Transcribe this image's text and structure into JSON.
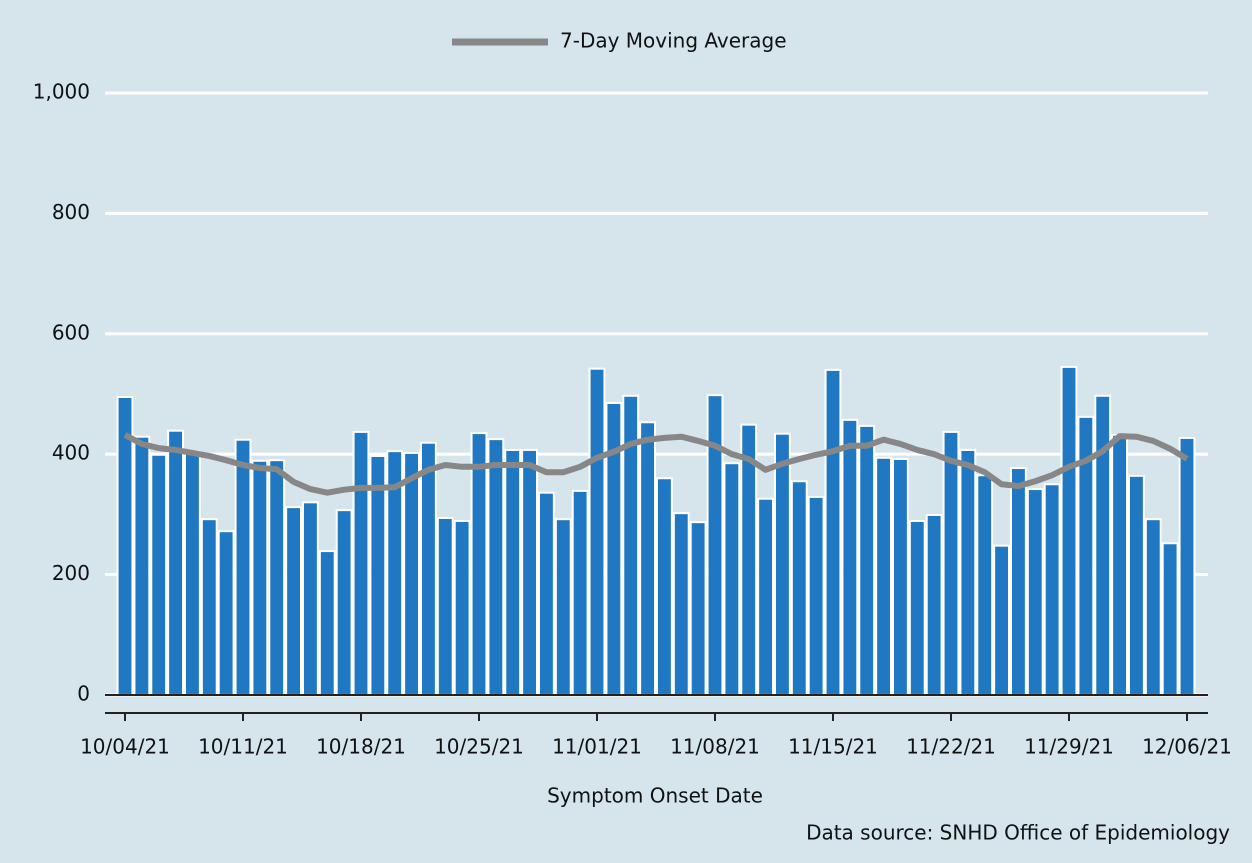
{
  "chart_data": {
    "type": "bar",
    "x_label": "Symptom Onset Date",
    "source": "Data source: SNHD Office of Epidemiology",
    "categories": [
      "10/04/21",
      null,
      null,
      null,
      null,
      null,
      null,
      "10/11/21",
      null,
      null,
      null,
      null,
      null,
      null,
      "10/18/21",
      null,
      null,
      null,
      null,
      null,
      null,
      "10/25/21",
      null,
      null,
      null,
      null,
      null,
      null,
      "11/01/21",
      null,
      null,
      null,
      null,
      null,
      null,
      "11/08/21",
      null,
      null,
      null,
      null,
      null,
      null,
      "11/15/21",
      null,
      null,
      null,
      null,
      null,
      null,
      "11/22/21",
      null,
      null,
      null,
      null,
      null,
      null,
      "11/29/21",
      null,
      null,
      null,
      null,
      null,
      null,
      "12/06/21"
    ],
    "series": [
      {
        "type": "bar",
        "color": "#1f78c1",
        "values": [
          495,
          429,
          399,
          439,
          404,
          292,
          272,
          424,
          389,
          390,
          312,
          320,
          239,
          307,
          437,
          397,
          405,
          402,
          419,
          294,
          289,
          435,
          425,
          407,
          407,
          336,
          292,
          339,
          542,
          485,
          497,
          453,
          360,
          302,
          287,
          498,
          385,
          449,
          326,
          434,
          355,
          329,
          540,
          457,
          447,
          394,
          392,
          289,
          299,
          437,
          407,
          365,
          248,
          377,
          342,
          350,
          545,
          462,
          497,
          432,
          364,
          292,
          252,
          427
        ]
      },
      {
        "type": "line",
        "name": "7-Day Moving Average",
        "color": "#878787",
        "values": [
          432,
          417,
          410,
          407,
          402,
          397,
          390,
          382,
          377,
          375,
          354,
          342,
          336,
          341,
          344,
          344,
          345,
          360,
          374,
          382,
          379,
          379,
          382,
          382,
          382,
          370,
          370,
          379,
          394,
          404,
          417,
          424,
          427,
          429,
          422,
          414,
          400,
          392,
          374,
          384,
          392,
          399,
          405,
          414,
          414,
          424,
          417,
          407,
          400,
          389,
          382,
          370,
          350,
          347,
          355,
          365,
          379,
          389,
          405,
          430,
          429,
          422,
          409,
          392
        ]
      }
    ],
    "ylim": [
      -30,
      1000
    ],
    "yticks": [
      0,
      200,
      400,
      600,
      800,
      {
        "value": 1000,
        "label": "1,000"
      }
    ],
    "grid": true,
    "legend": "top"
  }
}
